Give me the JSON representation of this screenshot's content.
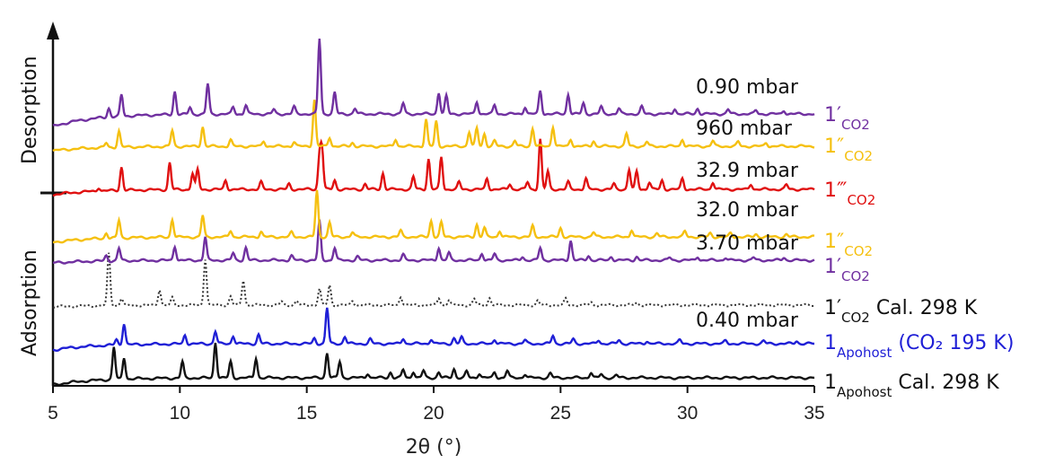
{
  "chart_data": {
    "type": "line",
    "xlabel": "2θ (°)",
    "xlim": [
      5,
      35
    ],
    "xticks": [
      5,
      10,
      15,
      20,
      25,
      30,
      35
    ],
    "side_labels": {
      "top": "Desorption",
      "bottom": "Adsorption"
    },
    "series": [
      {
        "id": "apohost_cal",
        "label_main": "1",
        "label_sub": "Apohost",
        "label_rest": " Cal. 298 K",
        "pressure": "",
        "color": "#111111",
        "dashed": false,
        "color_rest": "#111111",
        "peaks": [
          [
            7.4,
            36
          ],
          [
            7.8,
            24
          ],
          [
            10.1,
            18
          ],
          [
            11.4,
            40
          ],
          [
            12.0,
            18
          ],
          [
            13.0,
            22
          ],
          [
            15.8,
            28
          ],
          [
            16.3,
            18
          ],
          [
            17.4,
            5
          ],
          [
            18.3,
            6
          ],
          [
            18.8,
            9
          ],
          [
            19.2,
            7
          ],
          [
            19.6,
            8
          ],
          [
            20.2,
            6
          ],
          [
            20.8,
            10
          ],
          [
            21.3,
            7
          ],
          [
            21.8,
            5
          ],
          [
            22.4,
            6
          ],
          [
            22.9,
            8
          ],
          [
            23.6,
            4
          ],
          [
            24.6,
            5
          ],
          [
            26.2,
            6
          ],
          [
            26.6,
            4
          ],
          [
            27.2,
            3
          ]
        ]
      },
      {
        "id": "apohost_co2195",
        "label_main": "1",
        "label_sub": "Apohost",
        "label_rest": " (CO₂ 195 K)",
        "pressure": "0.40 mbar",
        "color": "#1f1fd6",
        "dashed": false,
        "color_rest": "#1f1fd6",
        "peaks": [
          [
            7.5,
            6
          ],
          [
            7.8,
            24
          ],
          [
            10.2,
            10
          ],
          [
            11.4,
            14
          ],
          [
            12.1,
            9
          ],
          [
            13.1,
            10
          ],
          [
            15.3,
            6
          ],
          [
            15.8,
            40
          ],
          [
            16.5,
            8
          ],
          [
            17.5,
            5
          ],
          [
            18.8,
            6
          ],
          [
            19.9,
            5
          ],
          [
            20.8,
            6
          ],
          [
            21.1,
            7
          ],
          [
            22.4,
            5
          ],
          [
            23.6,
            4
          ],
          [
            24.7,
            9
          ],
          [
            25.5,
            5
          ],
          [
            26.5,
            4
          ],
          [
            27.3,
            4
          ],
          [
            28.4,
            3
          ],
          [
            29.7,
            4
          ],
          [
            31.5,
            3
          ],
          [
            33.0,
            3
          ],
          [
            34.3,
            3
          ]
        ]
      },
      {
        "id": "co2_cal",
        "label_main": "1′",
        "label_sub": "CO2",
        "label_rest": " Cal. 298 K",
        "pressure": "",
        "color": "#333333",
        "dashed": true,
        "color_rest": "#111111",
        "peaks": [
          [
            7.2,
            58
          ],
          [
            7.7,
            8
          ],
          [
            9.2,
            18
          ],
          [
            9.7,
            8
          ],
          [
            11.0,
            52
          ],
          [
            12.0,
            10
          ],
          [
            12.5,
            28
          ],
          [
            14.0,
            4
          ],
          [
            14.6,
            5
          ],
          [
            15.5,
            18
          ],
          [
            15.9,
            22
          ],
          [
            16.8,
            5
          ],
          [
            18.7,
            10
          ],
          [
            20.2,
            8
          ],
          [
            20.6,
            6
          ],
          [
            21.6,
            7
          ],
          [
            22.2,
            8
          ],
          [
            24.1,
            5
          ],
          [
            25.2,
            7
          ],
          [
            26.2,
            3
          ],
          [
            28.0,
            3
          ]
        ]
      },
      {
        "id": "co2_3_70",
        "label_main": "1′",
        "label_sub": "CO2",
        "label_rest": "",
        "pressure": "3.70 mbar",
        "color": "#7030a0",
        "dashed": false,
        "color_rest": "#7030a0",
        "peaks": [
          [
            7.1,
            6
          ],
          [
            7.6,
            14
          ],
          [
            9.8,
            16
          ],
          [
            11.0,
            26
          ],
          [
            12.1,
            8
          ],
          [
            12.6,
            14
          ],
          [
            14.4,
            5
          ],
          [
            15.5,
            44
          ],
          [
            16.1,
            14
          ],
          [
            17.0,
            4
          ],
          [
            18.8,
            6
          ],
          [
            20.2,
            14
          ],
          [
            20.6,
            8
          ],
          [
            21.9,
            8
          ],
          [
            22.4,
            7
          ],
          [
            23.5,
            4
          ],
          [
            24.2,
            14
          ],
          [
            25.4,
            22
          ],
          [
            26.1,
            5
          ],
          [
            27.0,
            4
          ],
          [
            28.0,
            4
          ],
          [
            29.3,
            3
          ],
          [
            30.4,
            4
          ],
          [
            31.5,
            3
          ],
          [
            32.6,
            3
          ],
          [
            33.8,
            3
          ]
        ]
      },
      {
        "id": "co2pp_32_0",
        "label_main": "1″",
        "label_sub": "CO2",
        "label_rest": "",
        "pressure": "32.0 mbar",
        "color": "#f5c010",
        "dashed": false,
        "color_rest": "#f5c010",
        "peaks": [
          [
            7.1,
            6
          ],
          [
            7.6,
            20
          ],
          [
            9.7,
            20
          ],
          [
            10.9,
            24
          ],
          [
            12.0,
            7
          ],
          [
            13.2,
            6
          ],
          [
            14.4,
            5
          ],
          [
            15.4,
            52
          ],
          [
            15.9,
            16
          ],
          [
            16.8,
            5
          ],
          [
            18.7,
            7
          ],
          [
            19.9,
            18
          ],
          [
            20.3,
            16
          ],
          [
            21.7,
            14
          ],
          [
            22.0,
            10
          ],
          [
            22.6,
            7
          ],
          [
            23.9,
            12
          ],
          [
            25.0,
            10
          ],
          [
            26.3,
            5
          ],
          [
            27.8,
            8
          ],
          [
            28.8,
            4
          ],
          [
            29.9,
            6
          ],
          [
            30.9,
            4
          ],
          [
            31.7,
            4
          ],
          [
            32.7,
            3
          ],
          [
            33.9,
            3
          ]
        ]
      },
      {
        "id": "co2ppp_32_9",
        "label_main": "1‴",
        "label_sub": "CO2",
        "label_rest": "",
        "pressure": "32.9 mbar",
        "color": "#e01010",
        "dashed": false,
        "color_rest": "#e01010",
        "peaks": [
          [
            6.8,
            4
          ],
          [
            7.7,
            26
          ],
          [
            9.6,
            30
          ],
          [
            10.5,
            18
          ],
          [
            10.7,
            22
          ],
          [
            11.8,
            10
          ],
          [
            13.2,
            8
          ],
          [
            14.3,
            6
          ],
          [
            15.5,
            36
          ],
          [
            15.6,
            44
          ],
          [
            16.1,
            10
          ],
          [
            17.3,
            6
          ],
          [
            18.0,
            18
          ],
          [
            19.2,
            14
          ],
          [
            19.8,
            34
          ],
          [
            20.3,
            36
          ],
          [
            21.0,
            8
          ],
          [
            22.1,
            12
          ],
          [
            23.0,
            6
          ],
          [
            23.7,
            8
          ],
          [
            24.2,
            56
          ],
          [
            24.5,
            20
          ],
          [
            25.3,
            8
          ],
          [
            26.0,
            12
          ],
          [
            27.1,
            6
          ],
          [
            27.7,
            22
          ],
          [
            28.0,
            20
          ],
          [
            28.5,
            8
          ],
          [
            29.0,
            10
          ],
          [
            29.8,
            12
          ],
          [
            31.0,
            8
          ],
          [
            32.5,
            6
          ],
          [
            33.9,
            5
          ]
        ]
      },
      {
        "id": "co2pp_960",
        "label_main": "1″",
        "label_sub": "CO2",
        "label_rest": "",
        "pressure": "960 mbar",
        "color": "#f5c010",
        "dashed": false,
        "color_rest": "#f5c010",
        "peaks": [
          [
            7.1,
            5
          ],
          [
            7.6,
            18
          ],
          [
            9.7,
            18
          ],
          [
            10.9,
            22
          ],
          [
            12.0,
            7
          ],
          [
            13.3,
            6
          ],
          [
            14.5,
            5
          ],
          [
            15.3,
            52
          ],
          [
            15.9,
            10
          ],
          [
            16.8,
            4
          ],
          [
            18.5,
            8
          ],
          [
            19.7,
            30
          ],
          [
            20.1,
            28
          ],
          [
            21.4,
            16
          ],
          [
            21.7,
            20
          ],
          [
            22.0,
            14
          ],
          [
            22.4,
            6
          ],
          [
            23.2,
            6
          ],
          [
            23.9,
            20
          ],
          [
            24.7,
            22
          ],
          [
            25.4,
            8
          ],
          [
            26.3,
            6
          ],
          [
            27.6,
            14
          ],
          [
            28.4,
            5
          ],
          [
            29.8,
            8
          ],
          [
            31.0,
            6
          ],
          [
            32.0,
            5
          ],
          [
            33.1,
            4
          ]
        ]
      },
      {
        "id": "co2_0_90",
        "label_main": "1′",
        "label_sub": "CO2",
        "label_rest": "",
        "pressure": "0.90 mbar",
        "color": "#7030a0",
        "dashed": false,
        "color_rest": "#7030a0",
        "peaks": [
          [
            7.2,
            10
          ],
          [
            7.7,
            24
          ],
          [
            9.8,
            26
          ],
          [
            10.4,
            8
          ],
          [
            11.1,
            34
          ],
          [
            12.1,
            8
          ],
          [
            12.6,
            10
          ],
          [
            13.7,
            5
          ],
          [
            14.5,
            8
          ],
          [
            15.5,
            84
          ],
          [
            16.1,
            24
          ],
          [
            16.9,
            6
          ],
          [
            18.8,
            12
          ],
          [
            20.2,
            24
          ],
          [
            20.5,
            20
          ],
          [
            21.7,
            14
          ],
          [
            22.4,
            10
          ],
          [
            23.6,
            8
          ],
          [
            24.2,
            26
          ],
          [
            25.3,
            22
          ],
          [
            25.9,
            12
          ],
          [
            26.6,
            8
          ],
          [
            27.3,
            6
          ],
          [
            28.2,
            8
          ],
          [
            29.5,
            6
          ],
          [
            30.4,
            6
          ],
          [
            31.6,
            5
          ],
          [
            32.7,
            4
          ],
          [
            33.8,
            4
          ]
        ]
      }
    ]
  }
}
